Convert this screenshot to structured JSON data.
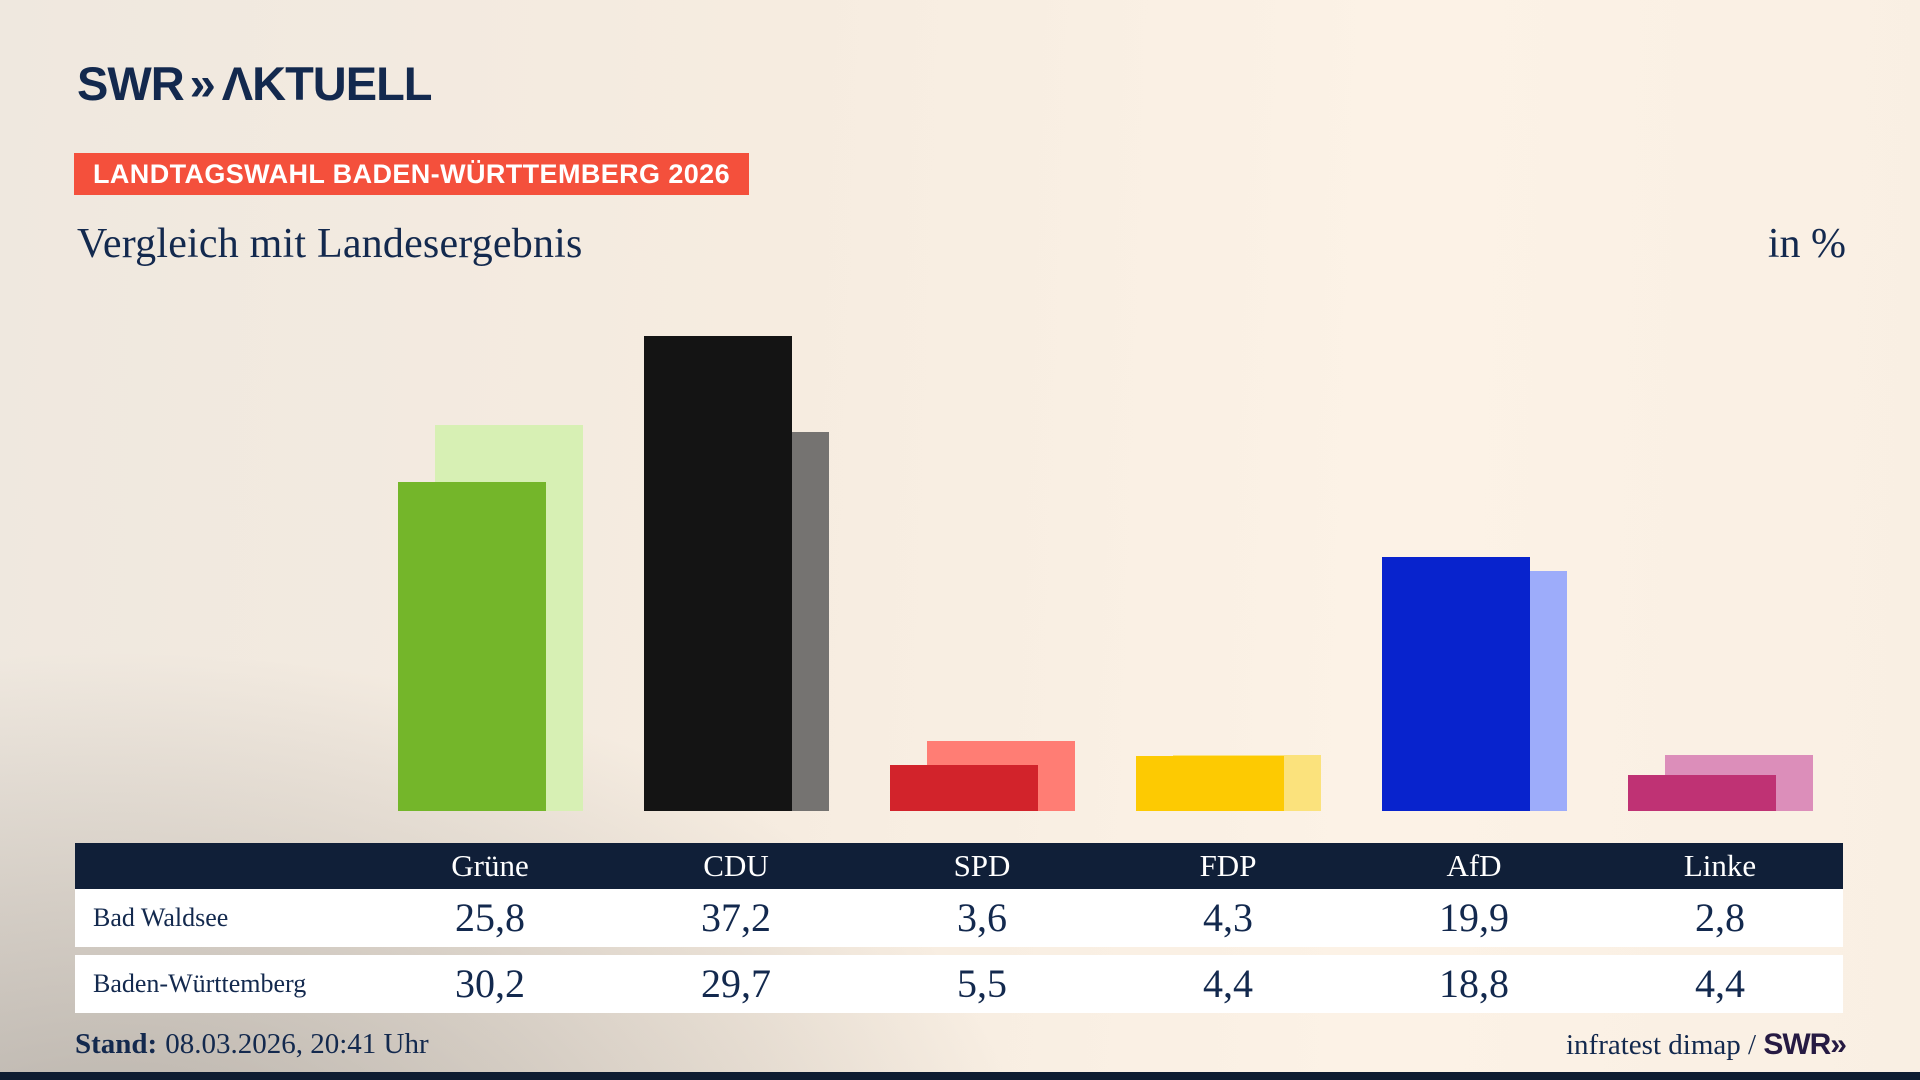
{
  "logo": {
    "brand": "SWR",
    "chevron": "»",
    "product": "ΛKTUELL"
  },
  "badge": {
    "text": "LANDTAGSWAHL BADEN-WÜRTTEMBERG 2026",
    "background": "#f4503c"
  },
  "title": {
    "text": "Vergleich mit Landesergebnis",
    "unit": "in %"
  },
  "chart_data": {
    "type": "bar",
    "categories": [
      "Grüne",
      "CDU",
      "SPD",
      "FDP",
      "AfD",
      "Linke"
    ],
    "series": [
      {
        "name": "Bad Waldsee",
        "values": [
          25.8,
          37.2,
          3.6,
          4.3,
          19.9,
          2.8
        ]
      },
      {
        "name": "Baden-Württemberg",
        "values": [
          30.2,
          29.7,
          5.5,
          4.4,
          18.8,
          4.4
        ]
      }
    ],
    "unit": "%",
    "ylim": [
      0,
      39
    ],
    "grid": false,
    "legend_position": "table-below-chart",
    "colors": {
      "front": [
        "#74b62a",
        "#141414",
        "#d2232b",
        "#fdca02",
        "#0823cd",
        "#bf3274"
      ],
      "back": [
        "#d7f0b4",
        "#757371",
        "#ff7d74",
        "#fbe27c",
        "#9dacfa",
        "#dc8eba"
      ]
    }
  },
  "table": {
    "header": [
      "",
      "Grüne",
      "CDU",
      "SPD",
      "FDP",
      "AfD",
      "Linke"
    ],
    "rows": [
      {
        "label": "Bad Waldsee",
        "values": [
          "25,8",
          "37,2",
          "3,6",
          "4,3",
          "19,9",
          "2,8"
        ]
      },
      {
        "label": "Baden-Württemberg",
        "values": [
          "30,2",
          "29,7",
          "5,5",
          "4,4",
          "18,8",
          "4,4"
        ]
      }
    ]
  },
  "footer": {
    "stand_label": "Stand:",
    "stand_value": "08.03.2026, 20:41 Uhr",
    "source": "infratest dimap / ",
    "brand": "SWR»"
  },
  "colors": {
    "navy": "#13294e",
    "table_header_bg": "#101f38",
    "bottom_strip": "#0e1c31",
    "badge_red": "#f4503c"
  }
}
